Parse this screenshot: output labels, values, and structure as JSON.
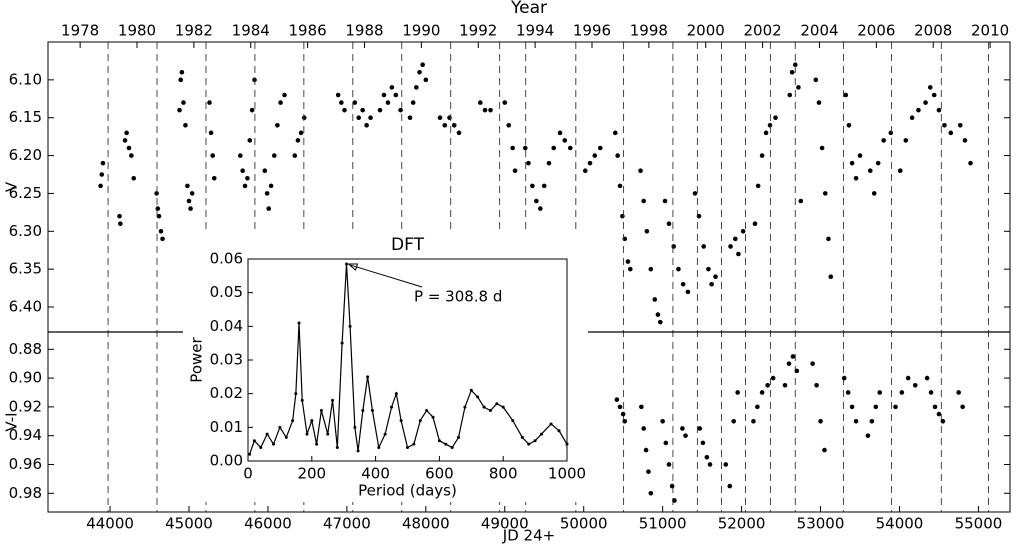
{
  "chart_data": [
    {
      "type": "scatter",
      "title": "Year",
      "ylabel": "V",
      "color": "#000000",
      "xlim": [
        43214,
        55400
      ],
      "ylim": [
        6.433,
        6.05
      ],
      "x2lim": [
        1976.87,
        2010.7
      ],
      "x2ticks": [
        1978,
        1980,
        1982,
        1984,
        1986,
        1988,
        1990,
        1992,
        1994,
        1996,
        1998,
        2000,
        2002,
        2004,
        2006,
        2008,
        2010
      ],
      "yticks": [
        {
          "value": 6.1,
          "label": "6.10"
        },
        {
          "value": 6.15,
          "label": "6.15"
        },
        {
          "value": 6.2,
          "label": "6.20"
        },
        {
          "value": 6.25,
          "label": "6.25"
        },
        {
          "value": 6.3,
          "label": "6.30"
        },
        {
          "value": 6.35,
          "label": "6.35"
        },
        {
          "value": 6.4,
          "label": "6.40"
        }
      ],
      "vlines": [
        43975,
        44595,
        45215,
        45835,
        46455,
        47075,
        47695,
        48315,
        48935,
        49265,
        49900,
        50505,
        51130,
        51440,
        51745,
        52050,
        52365,
        52680,
        53290,
        53900,
        54530,
        55128
      ],
      "x": [
        43880,
        43895,
        43910,
        44120,
        44130,
        44190,
        44210,
        44240,
        44270,
        44300,
        44590,
        44605,
        44620,
        44645,
        44665,
        44880,
        44895,
        44910,
        44930,
        44955,
        44980,
        45000,
        45020,
        45040,
        45260,
        45280,
        45300,
        45320,
        45650,
        45680,
        45710,
        45740,
        45770,
        45800,
        45830,
        45960,
        45990,
        46010,
        46040,
        46080,
        46120,
        46160,
        46210,
        46340,
        46380,
        46420,
        46460,
        46890,
        46930,
        46970,
        47100,
        47150,
        47200,
        47250,
        47300,
        47420,
        47470,
        47520,
        47570,
        47620,
        47680,
        47800,
        47840,
        47880,
        47920,
        47960,
        48000,
        48180,
        48240,
        48300,
        48360,
        48420,
        48690,
        48750,
        48820,
        49000,
        49050,
        49100,
        49130,
        49260,
        49300,
        49350,
        49400,
        49450,
        49500,
        49560,
        49620,
        49700,
        49760,
        49830,
        50020,
        50080,
        50140,
        50210,
        50400,
        50430,
        50460,
        50490,
        50520,
        50560,
        50590,
        50720,
        50760,
        50800,
        50850,
        50900,
        50940,
        50970,
        51030,
        51080,
        51140,
        51200,
        51260,
        51320,
        51410,
        51460,
        51520,
        51580,
        51620,
        51670,
        51860,
        51920,
        51960,
        52020,
        52170,
        52210,
        52260,
        52310,
        52360,
        52430,
        52610,
        52640,
        52680,
        52720,
        52750,
        52940,
        52980,
        53020,
        53060,
        53100,
        53130,
        53320,
        53360,
        53400,
        53450,
        53500,
        53630,
        53680,
        53730,
        53800,
        53890,
        54010,
        54080,
        54160,
        54240,
        54330,
        54390,
        54440,
        54500,
        54570,
        54650,
        54770,
        54830,
        54900
      ],
      "values": [
        6.24,
        6.225,
        6.21,
        6.28,
        6.29,
        6.18,
        6.17,
        6.19,
        6.2,
        6.23,
        6.25,
        6.27,
        6.28,
        6.3,
        6.31,
        6.14,
        6.1,
        6.09,
        6.13,
        6.16,
        6.24,
        6.26,
        6.27,
        6.25,
        6.13,
        6.17,
        6.2,
        6.23,
        6.2,
        6.22,
        6.24,
        6.23,
        6.18,
        6.14,
        6.1,
        6.22,
        6.25,
        6.27,
        6.24,
        6.2,
        6.16,
        6.13,
        6.12,
        6.2,
        6.18,
        6.17,
        6.15,
        6.12,
        6.13,
        6.14,
        6.13,
        6.15,
        6.14,
        6.16,
        6.15,
        6.14,
        6.12,
        6.13,
        6.11,
        6.12,
        6.14,
        6.15,
        6.13,
        6.11,
        6.09,
        6.08,
        6.1,
        6.15,
        6.16,
        6.15,
        6.16,
        6.17,
        6.13,
        6.14,
        6.14,
        6.13,
        6.16,
        6.19,
        6.22,
        6.19,
        6.21,
        6.24,
        6.26,
        6.27,
        6.24,
        6.21,
        6.19,
        6.17,
        6.18,
        6.19,
        6.22,
        6.21,
        6.2,
        6.19,
        6.17,
        6.2,
        6.24,
        6.28,
        6.31,
        6.34,
        6.35,
        6.22,
        6.26,
        6.3,
        6.35,
        6.39,
        6.41,
        6.42,
        6.26,
        6.29,
        6.32,
        6.35,
        6.37,
        6.38,
        6.25,
        6.28,
        6.32,
        6.35,
        6.37,
        6.36,
        6.32,
        6.31,
        6.33,
        6.3,
        6.29,
        6.24,
        6.2,
        6.17,
        6.16,
        6.15,
        6.12,
        6.09,
        6.08,
        6.11,
        6.26,
        6.1,
        6.13,
        6.19,
        6.25,
        6.31,
        6.36,
        6.12,
        6.16,
        6.21,
        6.23,
        6.2,
        6.22,
        6.25,
        6.21,
        6.18,
        6.17,
        6.22,
        6.18,
        6.15,
        6.14,
        6.13,
        6.11,
        6.12,
        6.14,
        6.16,
        6.17,
        6.16,
        6.18,
        6.21
      ]
    },
    {
      "type": "scatter",
      "xlabel": "JD 24+",
      "ylabel": "V-I",
      "color": "#000000",
      "xlim": [
        43214,
        55400
      ],
      "ylim": [
        0.993,
        0.868
      ],
      "xticks": [
        44000,
        45000,
        46000,
        47000,
        48000,
        49000,
        50000,
        51000,
        52000,
        53000,
        54000,
        55000
      ],
      "yticks": [
        {
          "value": 0.88,
          "label": "0.88"
        },
        {
          "value": 0.9,
          "label": "0.90"
        },
        {
          "value": 0.92,
          "label": "0.92"
        },
        {
          "value": 0.94,
          "label": "0.94"
        },
        {
          "value": 0.96,
          "label": "0.96"
        },
        {
          "value": 0.98,
          "label": "0.98"
        }
      ],
      "x": [
        50420,
        50460,
        50500,
        50520,
        50730,
        50760,
        50790,
        50820,
        50850,
        51000,
        51040,
        51080,
        51120,
        51150,
        51250,
        51290,
        51470,
        51510,
        51560,
        51600,
        51800,
        51850,
        51900,
        51950,
        52150,
        52200,
        52260,
        52330,
        52400,
        52550,
        52600,
        52650,
        52700,
        52900,
        52950,
        53000,
        53050,
        53300,
        53350,
        53400,
        53450,
        53600,
        53650,
        53700,
        53750,
        53950,
        54030,
        54110,
        54200,
        54350,
        54400,
        54450,
        54500,
        54550,
        54750,
        54800
      ],
      "values": [
        0.915,
        0.92,
        0.925,
        0.93,
        0.92,
        0.935,
        0.95,
        0.965,
        0.98,
        0.93,
        0.945,
        0.96,
        0.975,
        0.985,
        0.935,
        0.94,
        0.935,
        0.945,
        0.955,
        0.96,
        0.96,
        0.975,
        0.93,
        0.91,
        0.93,
        0.92,
        0.91,
        0.905,
        0.9,
        0.905,
        0.89,
        0.885,
        0.895,
        0.89,
        0.905,
        0.93,
        0.95,
        0.9,
        0.91,
        0.92,
        0.93,
        0.94,
        0.93,
        0.92,
        0.91,
        0.92,
        0.91,
        0.9,
        0.905,
        0.9,
        0.91,
        0.92,
        0.925,
        0.93,
        0.91,
        0.92
      ]
    },
    {
      "type": "line",
      "title": "DFT",
      "xlabel": "Period (days)",
      "ylabel": "Power",
      "color": "#000000",
      "annotation": "P = 308.8 d",
      "xlim": [
        0,
        1000
      ],
      "ylim": [
        0,
        0.06
      ],
      "xticks": [
        0,
        200,
        400,
        600,
        800,
        1000
      ],
      "yticks": [
        {
          "value": 0,
          "label": "0.00"
        },
        {
          "value": 0.01,
          "label": "0.01"
        },
        {
          "value": 0.02,
          "label": "0.02"
        },
        {
          "value": 0.03,
          "label": "0.03"
        },
        {
          "value": 0.04,
          "label": "0.04"
        },
        {
          "value": 0.05,
          "label": "0.05"
        },
        {
          "value": 0.06,
          "label": "0.06"
        }
      ],
      "x": [
        5,
        20,
        40,
        60,
        80,
        100,
        120,
        140,
        150,
        160,
        170,
        185,
        200,
        215,
        230,
        250,
        265,
        280,
        295,
        308.8,
        320,
        335,
        345,
        360,
        375,
        390,
        410,
        430,
        450,
        465,
        480,
        500,
        520,
        540,
        560,
        580,
        600,
        620,
        640,
        660,
        680,
        700,
        720,
        740,
        760,
        780,
        800,
        830,
        860,
        880,
        900,
        920,
        950,
        975,
        1000
      ],
      "values": [
        0.002,
        0.006,
        0.004,
        0.008,
        0.005,
        0.01,
        0.007,
        0.012,
        0.02,
        0.041,
        0.018,
        0.008,
        0.012,
        0.005,
        0.015,
        0.008,
        0.018,
        0.004,
        0.035,
        0.0585,
        0.04,
        0.01,
        0.003,
        0.015,
        0.025,
        0.015,
        0.004,
        0.008,
        0.016,
        0.02,
        0.012,
        0.004,
        0.005,
        0.012,
        0.015,
        0.013,
        0.006,
        0.005,
        0.004,
        0.007,
        0.016,
        0.021,
        0.019,
        0.016,
        0.015,
        0.017,
        0.016,
        0.012,
        0.007,
        0.005,
        0.006,
        0.008,
        0.011,
        0.009,
        0.005
      ]
    }
  ]
}
